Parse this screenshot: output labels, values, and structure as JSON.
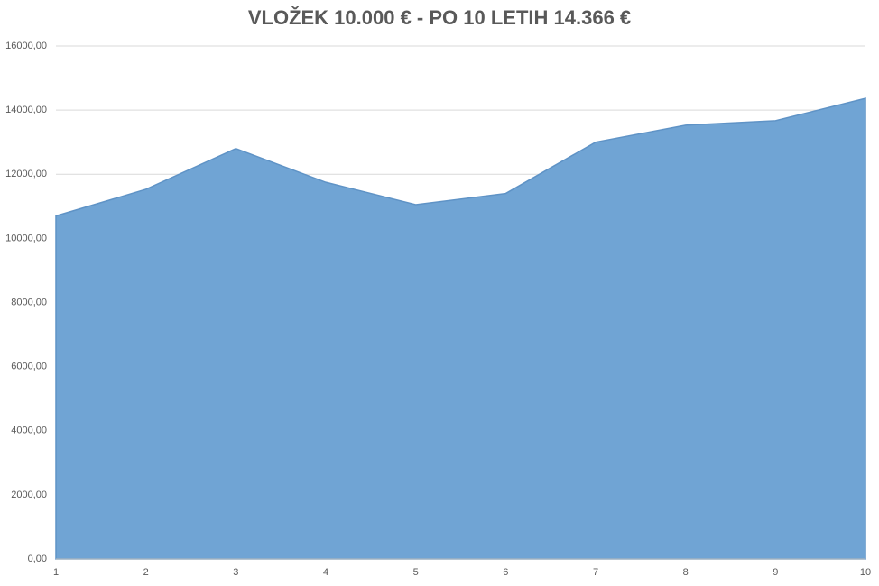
{
  "chart_data": {
    "type": "area",
    "title": "VLOŽEK 10.000 € - PO 10 LETIH 14.366 €",
    "x": [
      1,
      2,
      3,
      4,
      5,
      6,
      7,
      8,
      9,
      10
    ],
    "values": [
      10700,
      11530,
      12800,
      11750,
      11050,
      11400,
      13000,
      13530,
      13670,
      14366
    ],
    "color": "#70a4d4",
    "xlim": [
      1,
      10
    ],
    "xticks": [
      1,
      2,
      3,
      4,
      5,
      6,
      7,
      8,
      9,
      10
    ],
    "ylim": [
      0,
      16000
    ],
    "yticks": [
      {
        "value": 0,
        "label": "0,00"
      },
      {
        "value": 2000,
        "label": "2000,00"
      },
      {
        "value": 4000,
        "label": "4000,00"
      },
      {
        "value": 6000,
        "label": "6000,00"
      },
      {
        "value": 8000,
        "label": "8000,00"
      },
      {
        "value": 10000,
        "label": "10000,00"
      },
      {
        "value": 12000,
        "label": "12000,00"
      },
      {
        "value": 14000,
        "label": "14000,00"
      },
      {
        "value": 16000,
        "label": "16000,00"
      }
    ],
    "grid": true
  }
}
